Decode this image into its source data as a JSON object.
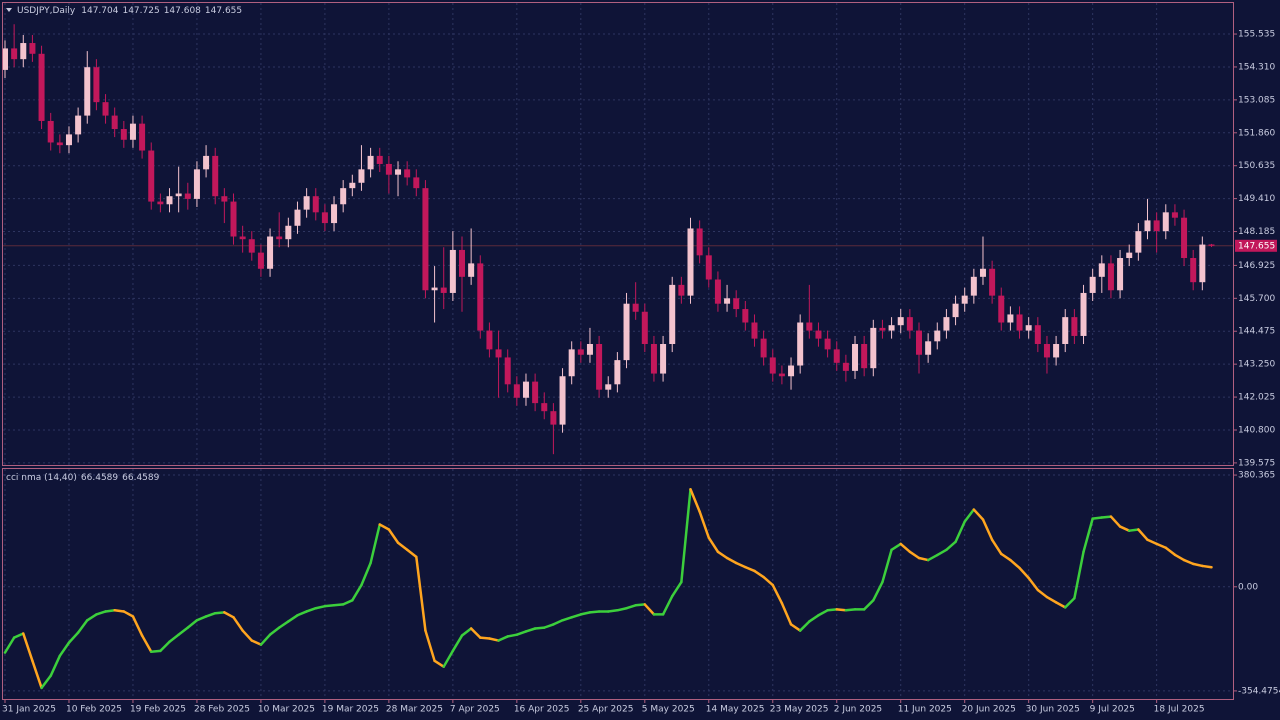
{
  "chart_data": [
    {
      "type": "candlestick",
      "title": "USDJPY,Daily",
      "up_color": "#f3c3ce",
      "down_color": "#c2185b",
      "ylim": [
        139.46,
        156.69
      ],
      "yticks": [
        155.535,
        {
          "value": 154.31,
          "label": "154.310"
        },
        153.085,
        {
          "value": 151.86,
          "label": "151.860"
        },
        150.635,
        {
          "value": 149.41,
          "label": "149.410"
        },
        148.185,
        146.925,
        {
          "value": 145.7,
          "label": "145.700"
        },
        144.475,
        {
          "value": 143.25,
          "label": "143.250"
        },
        142.025,
        {
          "value": 140.8,
          "label": "140.800"
        },
        139.575
      ],
      "grid": true,
      "ohlc": [
        [
          154.2,
          155.3,
          153.9,
          155.0
        ],
        [
          155.0,
          155.9,
          154.3,
          154.6
        ],
        [
          154.6,
          155.5,
          154.3,
          155.2
        ],
        [
          155.2,
          155.5,
          154.5,
          154.8
        ],
        [
          154.8,
          155.1,
          152.0,
          152.3
        ],
        [
          152.3,
          152.6,
          151.2,
          151.5
        ],
        [
          151.5,
          151.8,
          151.1,
          151.4
        ],
        [
          151.4,
          152.1,
          151.1,
          151.8
        ],
        [
          151.8,
          152.8,
          151.5,
          152.5
        ],
        [
          152.5,
          154.9,
          152.2,
          154.3
        ],
        [
          154.3,
          154.6,
          152.7,
          153.0
        ],
        [
          153.0,
          153.3,
          152.2,
          152.5
        ],
        [
          152.5,
          152.8,
          151.7,
          152.0
        ],
        [
          152.0,
          152.3,
          151.3,
          151.6
        ],
        [
          151.6,
          152.5,
          151.3,
          152.2
        ],
        [
          152.2,
          152.5,
          150.9,
          151.2
        ],
        [
          151.2,
          151.5,
          149.0,
          149.3
        ],
        [
          149.3,
          149.6,
          148.9,
          149.2
        ],
        [
          149.2,
          149.8,
          148.9,
          149.5
        ],
        [
          149.5,
          150.6,
          148.9,
          149.6
        ],
        [
          149.6,
          150.0,
          149.0,
          149.4
        ],
        [
          149.4,
          150.8,
          149.1,
          150.5
        ],
        [
          150.5,
          151.4,
          150.2,
          151.0
        ],
        [
          151.0,
          151.3,
          149.2,
          149.5
        ],
        [
          149.5,
          149.8,
          148.5,
          149.3
        ],
        [
          149.3,
          149.6,
          147.7,
          148.0
        ],
        [
          148.0,
          148.4,
          147.4,
          147.9
        ],
        [
          147.9,
          148.2,
          147.1,
          147.4
        ],
        [
          147.4,
          147.7,
          146.5,
          146.8
        ],
        [
          146.8,
          148.3,
          146.5,
          148.0
        ],
        [
          148.0,
          148.9,
          147.6,
          147.9
        ],
        [
          147.9,
          148.7,
          147.6,
          148.4
        ],
        [
          148.4,
          149.3,
          148.1,
          149.0
        ],
        [
          149.0,
          149.8,
          148.7,
          149.5
        ],
        [
          149.5,
          149.8,
          148.6,
          148.9
        ],
        [
          148.9,
          149.2,
          148.2,
          148.5
        ],
        [
          148.5,
          149.5,
          148.2,
          149.2
        ],
        [
          149.2,
          150.1,
          148.9,
          149.8
        ],
        [
          149.8,
          150.3,
          149.5,
          150.0
        ],
        [
          150.0,
          151.4,
          149.7,
          150.5
        ],
        [
          150.5,
          151.3,
          150.2,
          151.0
        ],
        [
          151.0,
          151.3,
          150.4,
          150.7
        ],
        [
          150.7,
          151.0,
          149.6,
          150.3
        ],
        [
          150.3,
          150.8,
          149.5,
          150.5
        ],
        [
          150.5,
          150.8,
          149.9,
          150.2
        ],
        [
          150.2,
          150.5,
          149.5,
          149.8
        ],
        [
          149.8,
          150.1,
          145.7,
          146.0
        ],
        [
          146.0,
          146.9,
          144.8,
          146.1
        ],
        [
          146.1,
          147.6,
          145.3,
          145.9
        ],
        [
          145.9,
          148.2,
          145.6,
          147.5
        ],
        [
          147.5,
          148.0,
          145.2,
          146.5
        ],
        [
          146.5,
          148.3,
          146.2,
          147.0
        ],
        [
          147.0,
          147.3,
          144.2,
          144.5
        ],
        [
          144.5,
          144.8,
          143.5,
          143.8
        ],
        [
          143.8,
          144.5,
          142.0,
          143.5
        ],
        [
          143.5,
          143.8,
          142.2,
          142.5
        ],
        [
          142.5,
          142.8,
          141.7,
          142.0
        ],
        [
          142.0,
          142.9,
          141.7,
          142.6
        ],
        [
          142.6,
          142.9,
          141.5,
          141.8
        ],
        [
          141.8,
          142.2,
          141.2,
          141.5
        ],
        [
          141.5,
          141.8,
          139.9,
          141.0
        ],
        [
          141.0,
          143.1,
          140.7,
          142.8
        ],
        [
          142.8,
          144.1,
          142.5,
          143.8
        ],
        [
          143.8,
          144.1,
          143.3,
          143.6
        ],
        [
          143.6,
          144.6,
          143.3,
          144.0
        ],
        [
          144.0,
          144.3,
          142.0,
          142.3
        ],
        [
          142.3,
          142.8,
          142.0,
          142.5
        ],
        [
          142.5,
          143.7,
          142.2,
          143.4
        ],
        [
          143.4,
          145.9,
          143.1,
          145.5
        ],
        [
          145.5,
          146.3,
          144.9,
          145.2
        ],
        [
          145.2,
          145.5,
          143.7,
          144.0
        ],
        [
          144.0,
          144.3,
          142.6,
          142.9
        ],
        [
          142.9,
          144.3,
          142.6,
          144.0
        ],
        [
          144.0,
          146.5,
          143.7,
          146.2
        ],
        [
          146.2,
          146.5,
          145.5,
          145.8
        ],
        [
          145.8,
          148.7,
          145.5,
          148.3
        ],
        [
          148.3,
          148.6,
          147.0,
          147.3
        ],
        [
          147.3,
          147.6,
          146.1,
          146.4
        ],
        [
          146.4,
          146.7,
          145.2,
          145.5
        ],
        [
          145.5,
          146.2,
          145.2,
          145.7
        ],
        [
          145.7,
          146.0,
          145.0,
          145.3
        ],
        [
          145.3,
          145.6,
          144.5,
          144.8
        ],
        [
          144.8,
          145.1,
          143.9,
          144.2
        ],
        [
          144.2,
          144.5,
          143.2,
          143.5
        ],
        [
          143.5,
          143.8,
          142.6,
          142.9
        ],
        [
          142.9,
          143.2,
          142.5,
          142.8
        ],
        [
          142.8,
          143.5,
          142.3,
          143.2
        ],
        [
          143.2,
          145.1,
          142.9,
          144.8
        ],
        [
          144.8,
          146.2,
          144.2,
          144.5
        ],
        [
          144.5,
          144.8,
          143.9,
          144.2
        ],
        [
          144.2,
          144.5,
          143.5,
          143.8
        ],
        [
          143.8,
          144.1,
          143.0,
          143.3
        ],
        [
          143.3,
          143.6,
          142.6,
          143.0
        ],
        [
          143.0,
          144.3,
          142.7,
          144.0
        ],
        [
          144.0,
          144.3,
          142.8,
          143.1
        ],
        [
          143.1,
          144.9,
          142.8,
          144.6
        ],
        [
          144.6,
          144.9,
          144.2,
          144.5
        ],
        [
          144.5,
          145.0,
          144.2,
          144.7
        ],
        [
          144.7,
          145.3,
          144.4,
          145.0
        ],
        [
          145.0,
          145.3,
          144.2,
          144.5
        ],
        [
          144.5,
          144.8,
          142.9,
          143.6
        ],
        [
          143.6,
          144.4,
          143.3,
          144.1
        ],
        [
          144.1,
          144.8,
          143.8,
          144.5
        ],
        [
          144.5,
          145.3,
          144.2,
          145.0
        ],
        [
          145.0,
          145.8,
          144.7,
          145.5
        ],
        [
          145.5,
          146.1,
          145.2,
          145.8
        ],
        [
          145.8,
          146.8,
          145.5,
          146.5
        ],
        [
          146.5,
          148.0,
          146.2,
          146.8
        ],
        [
          146.8,
          147.1,
          145.5,
          145.8
        ],
        [
          145.8,
          146.1,
          144.5,
          144.8
        ],
        [
          144.8,
          145.4,
          144.5,
          145.1
        ],
        [
          145.1,
          145.4,
          144.2,
          144.5
        ],
        [
          144.5,
          145.0,
          144.2,
          144.7
        ],
        [
          144.7,
          145.0,
          143.7,
          144.0
        ],
        [
          144.0,
          144.3,
          142.9,
          143.5
        ],
        [
          143.5,
          144.3,
          143.2,
          144.0
        ],
        [
          144.0,
          145.3,
          143.7,
          145.0
        ],
        [
          145.0,
          145.3,
          144.0,
          144.3
        ],
        [
          144.3,
          146.2,
          144.0,
          145.9
        ],
        [
          145.9,
          146.8,
          145.6,
          146.5
        ],
        [
          146.5,
          147.3,
          145.9,
          147.0
        ],
        [
          147.0,
          147.3,
          145.7,
          146.0
        ],
        [
          146.0,
          147.5,
          145.7,
          147.2
        ],
        [
          147.2,
          147.7,
          146.9,
          147.4
        ],
        [
          147.4,
          148.5,
          147.1,
          148.2
        ],
        [
          148.2,
          149.4,
          147.9,
          148.6
        ],
        [
          148.6,
          148.9,
          147.4,
          148.2
        ],
        [
          148.2,
          149.2,
          147.9,
          148.9
        ],
        [
          148.9,
          149.2,
          148.4,
          148.7
        ],
        [
          148.7,
          149.0,
          146.9,
          147.2
        ],
        [
          147.2,
          147.5,
          146.0,
          146.3
        ],
        [
          146.3,
          148.0,
          146.0,
          147.7
        ],
        [
          147.704,
          147.725,
          147.608,
          147.655
        ]
      ]
    },
    {
      "type": "line",
      "title": "cci nma (14,40)",
      "up_color": "#3ccf3c",
      "down_color": "#ffa51f",
      "ylim": [
        -382,
        401
      ],
      "yticks": [
        380.365,
        {
          "value": 0,
          "label": "0.00"
        },
        -354.4754
      ],
      "grid": true,
      "xticks": [
        {
          "value": 0,
          "label": "31 Jan 2025"
        },
        {
          "value": 7,
          "label": "10 Feb 2025"
        },
        {
          "value": 14,
          "label": "19 Feb 2025"
        },
        {
          "value": 21,
          "label": "28 Feb 2025"
        },
        {
          "value": 28,
          "label": "10 Mar 2025"
        },
        {
          "value": 35,
          "label": "19 Mar 2025"
        },
        {
          "value": 42,
          "label": "28 Mar 2025"
        },
        {
          "value": 49,
          "label": "7 Apr 2025"
        },
        {
          "value": 56,
          "label": "16 Apr 2025"
        },
        {
          "value": 63,
          "label": "25 Apr 2025"
        },
        {
          "value": 70,
          "label": "5 May 2025"
        },
        {
          "value": 77,
          "label": "14 May 2025"
        },
        {
          "value": 84,
          "label": "23 May 2025"
        },
        {
          "value": 91,
          "label": "2 Jun 2025"
        },
        {
          "value": 98,
          "label": "11 Jun 2025"
        },
        {
          "value": 105,
          "label": "20 Jun 2025"
        },
        {
          "value": 112,
          "label": "30 Jun 2025"
        },
        {
          "value": 119,
          "label": "9 Jul 2025"
        },
        {
          "value": 126,
          "label": "18 Jul 2025"
        }
      ],
      "values": [
        -224,
        -173,
        -159,
        -252,
        -344,
        -303,
        -235,
        -190,
        -156,
        -114,
        -94,
        -84,
        -80,
        -84,
        -101,
        -166,
        -221,
        -218,
        -187,
        -163,
        -139,
        -114,
        -101,
        -90,
        -87,
        -104,
        -149,
        -183,
        -197,
        -163,
        -139,
        -118,
        -97,
        -84,
        -73,
        -66,
        -63,
        -60,
        -46,
        6,
        81,
        212,
        195,
        150,
        126,
        102,
        -149,
        -252,
        -272,
        -218,
        -166,
        -142,
        -173,
        -176,
        -183,
        -169,
        -163,
        -152,
        -142,
        -139,
        -128,
        -114,
        -104,
        -94,
        -87,
        -84,
        -84,
        -80,
        -73,
        -63,
        -60,
        -94,
        -94,
        -32,
        16,
        332,
        256,
        167,
        119,
        98,
        81,
        67,
        54,
        33,
        6,
        -56,
        -128,
        -149,
        -118,
        -97,
        -80,
        -77,
        -80,
        -77,
        -77,
        -46,
        16,
        126,
        146,
        119,
        98,
        91,
        108,
        126,
        153,
        222,
        263,
        229,
        160,
        112,
        91,
        64,
        30,
        -11,
        -35,
        -53,
        -70,
        -39,
        119,
        232,
        236,
        239,
        205,
        191,
        195,
        160,
        146,
        133,
        109,
        91,
        78,
        71,
        66.4589
      ]
    }
  ]
}
